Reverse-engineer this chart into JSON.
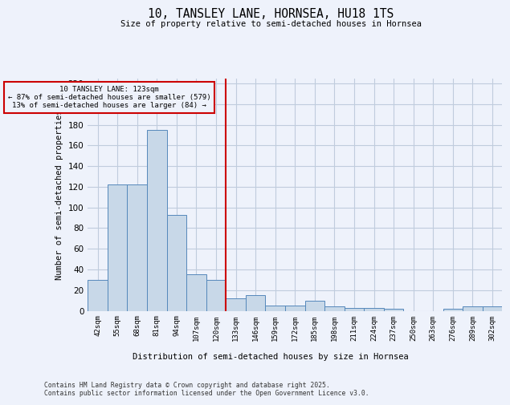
{
  "title": "10, TANSLEY LANE, HORNSEA, HU18 1TS",
  "subtitle": "Size of property relative to semi-detached houses in Hornsea",
  "xlabel": "Distribution of semi-detached houses by size in Hornsea",
  "ylabel": "Number of semi-detached properties",
  "categories": [
    "42sqm",
    "55sqm",
    "68sqm",
    "81sqm",
    "94sqm",
    "107sqm",
    "120sqm",
    "133sqm",
    "146sqm",
    "159sqm",
    "172sqm",
    "185sqm",
    "198sqm",
    "211sqm",
    "224sqm",
    "237sqm",
    "250sqm",
    "263sqm",
    "276sqm",
    "289sqm",
    "302sqm"
  ],
  "values": [
    30,
    122,
    122,
    175,
    93,
    35,
    30,
    12,
    15,
    5,
    5,
    10,
    4,
    3,
    3,
    2,
    0,
    0,
    2,
    4,
    4
  ],
  "bar_color": "#c8d8e8",
  "bar_edge_color": "#5588bb",
  "property_label": "10 TANSLEY LANE: 123sqm",
  "annotation_line1": "← 87% of semi-detached houses are smaller (579)",
  "annotation_line2": "13% of semi-detached houses are larger (84) →",
  "vline_color": "#cc0000",
  "vline_x_index": 6.5,
  "ylim": [
    0,
    225
  ],
  "yticks": [
    0,
    20,
    40,
    60,
    80,
    100,
    120,
    140,
    160,
    180,
    200,
    220
  ],
  "background_color": "#eef2fb",
  "grid_color": "#c0ccdd",
  "footer_line1": "Contains HM Land Registry data © Crown copyright and database right 2025.",
  "footer_line2": "Contains public sector information licensed under the Open Government Licence v3.0."
}
